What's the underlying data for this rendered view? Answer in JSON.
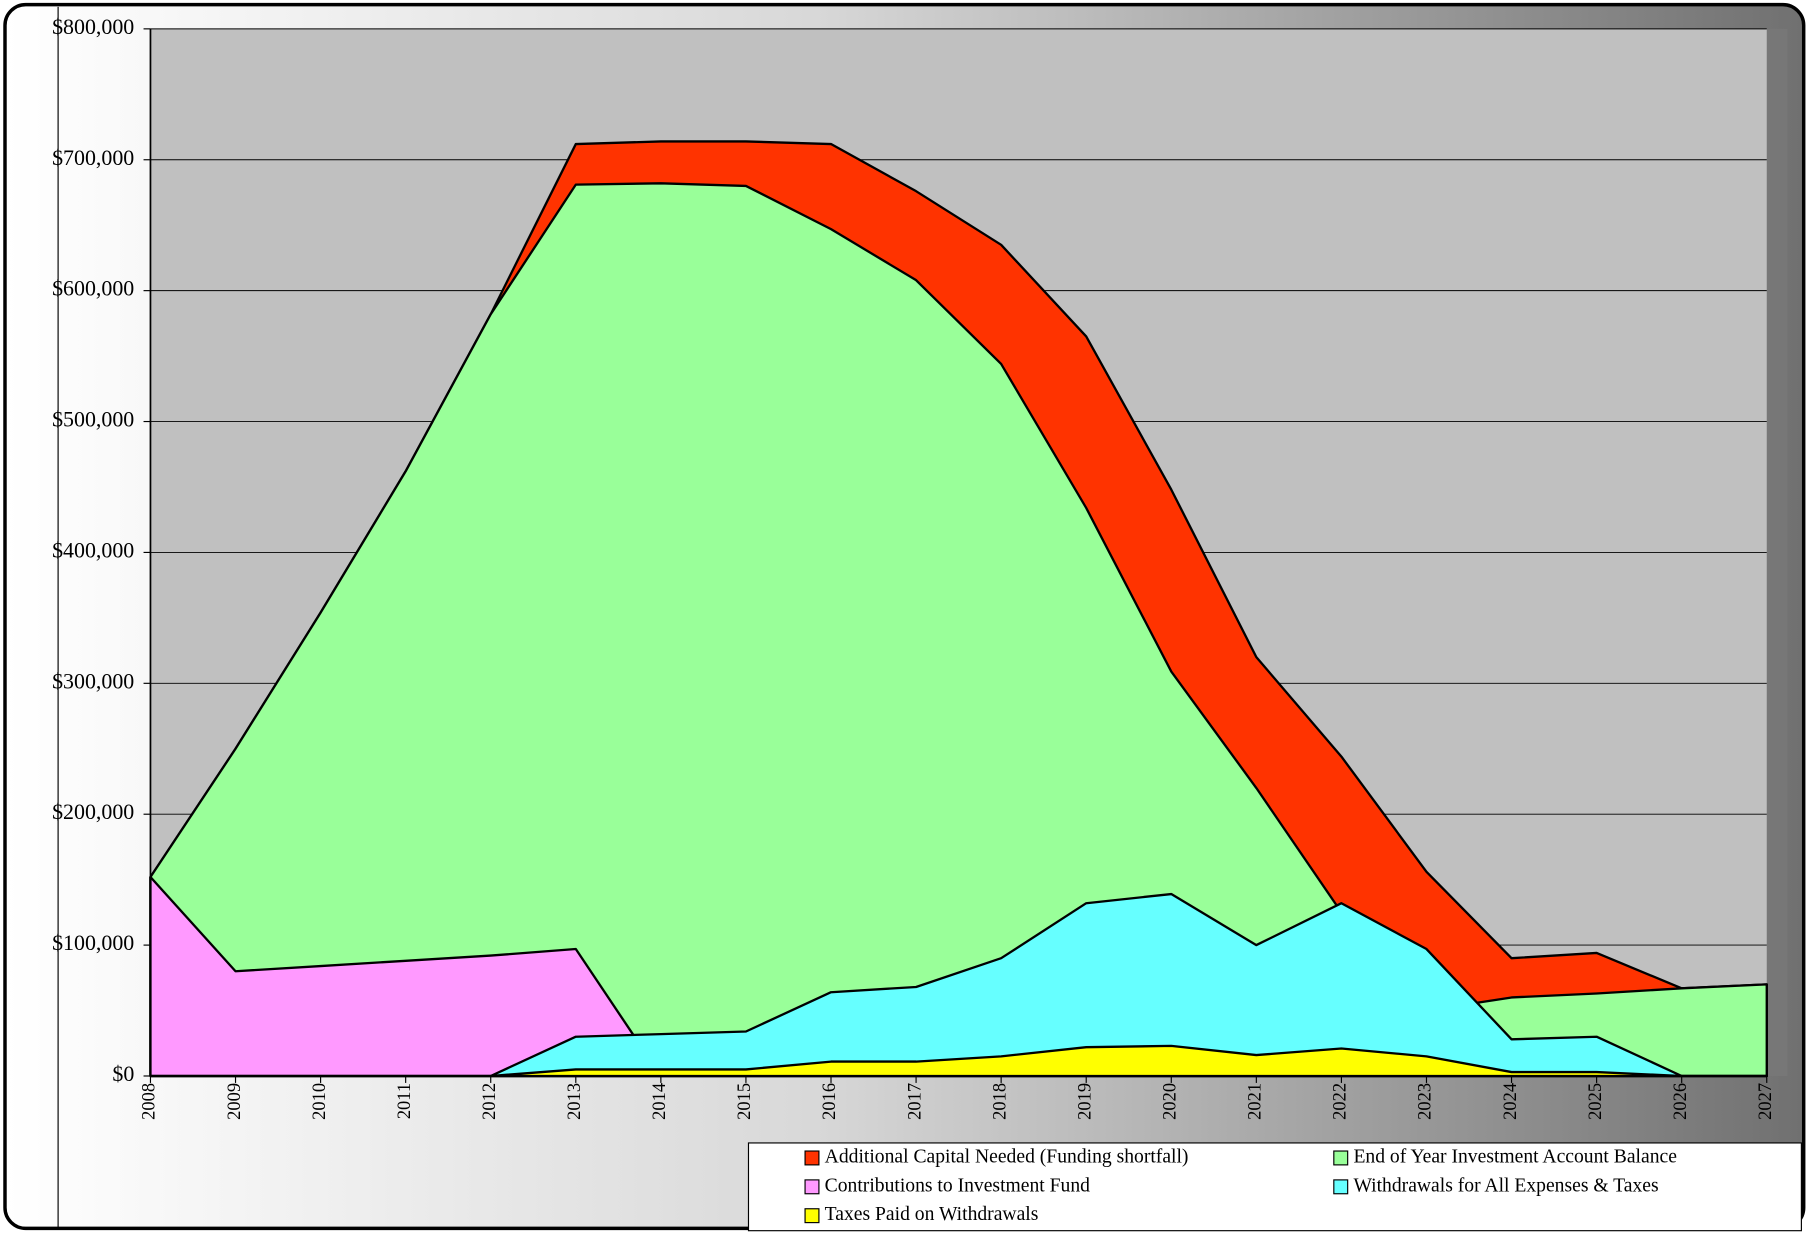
{
  "chart_data": {
    "type": "area",
    "categories": [
      "2008",
      "2009",
      "2010",
      "2011",
      "2012",
      "2013",
      "2014",
      "2015",
      "2016",
      "2017",
      "2018",
      "2019",
      "2020",
      "2021",
      "2022",
      "2023",
      "2024",
      "2025",
      "2026",
      "2027"
    ],
    "series": [
      {
        "name": "Additional Capital Needed (Funding shortfall)",
        "color": "#ff3300",
        "values": [
          152000,
          250000,
          354000,
          462000,
          582000,
          712000,
          714000,
          714000,
          712000,
          676000,
          635000,
          565000,
          448000,
          320000,
          244000,
          156000,
          90000,
          94000,
          67000,
          70000
        ]
      },
      {
        "name": "End of Year Investment Account Balance",
        "color": "#99ff99",
        "values": [
          152000,
          250000,
          354000,
          462000,
          582000,
          681000,
          682000,
          680000,
          647000,
          608000,
          544000,
          434000,
          309000,
          220000,
          125000,
          50000,
          60000,
          63000,
          67000,
          70000
        ]
      },
      {
        "name": "Contributions to Investment Fund",
        "color": "#ff99ff",
        "values": [
          152000,
          80000,
          84000,
          88000,
          92000,
          97000,
          0,
          0,
          0,
          0,
          0,
          0,
          0,
          0,
          0,
          0,
          0,
          0,
          0,
          0
        ]
      },
      {
        "name": "Withdrawals for All Expenses & Taxes",
        "color": "#66ffff",
        "values": [
          0,
          0,
          0,
          0,
          0,
          30000,
          32000,
          34000,
          64000,
          68000,
          90000,
          132000,
          139000,
          100000,
          132000,
          97000,
          28000,
          30000,
          0,
          0
        ]
      },
      {
        "name": "Taxes Paid on Withdrawals",
        "color": "#ffff00",
        "values": [
          0,
          0,
          0,
          0,
          0,
          5000,
          5000,
          5000,
          11000,
          11000,
          15000,
          22000,
          23000,
          16000,
          21000,
          15000,
          3000,
          3000,
          0,
          0
        ]
      }
    ],
    "ylim": [
      0,
      800000
    ],
    "yticks": [
      {
        "value": 0,
        "label": "$0"
      },
      {
        "value": 100000,
        "label": "$100,000"
      },
      {
        "value": 200000,
        "label": "$200,000"
      },
      {
        "value": 300000,
        "label": "$300,000"
      },
      {
        "value": 400000,
        "label": "$400,000"
      },
      {
        "value": 500000,
        "label": "$500,000"
      },
      {
        "value": 600000,
        "label": "$600,000"
      },
      {
        "value": 700000,
        "label": "$700,000"
      },
      {
        "value": 800000,
        "label": "$800,000"
      }
    ],
    "grid": true,
    "legend": "bottom-right",
    "plot_background": "#c0c0c0"
  }
}
